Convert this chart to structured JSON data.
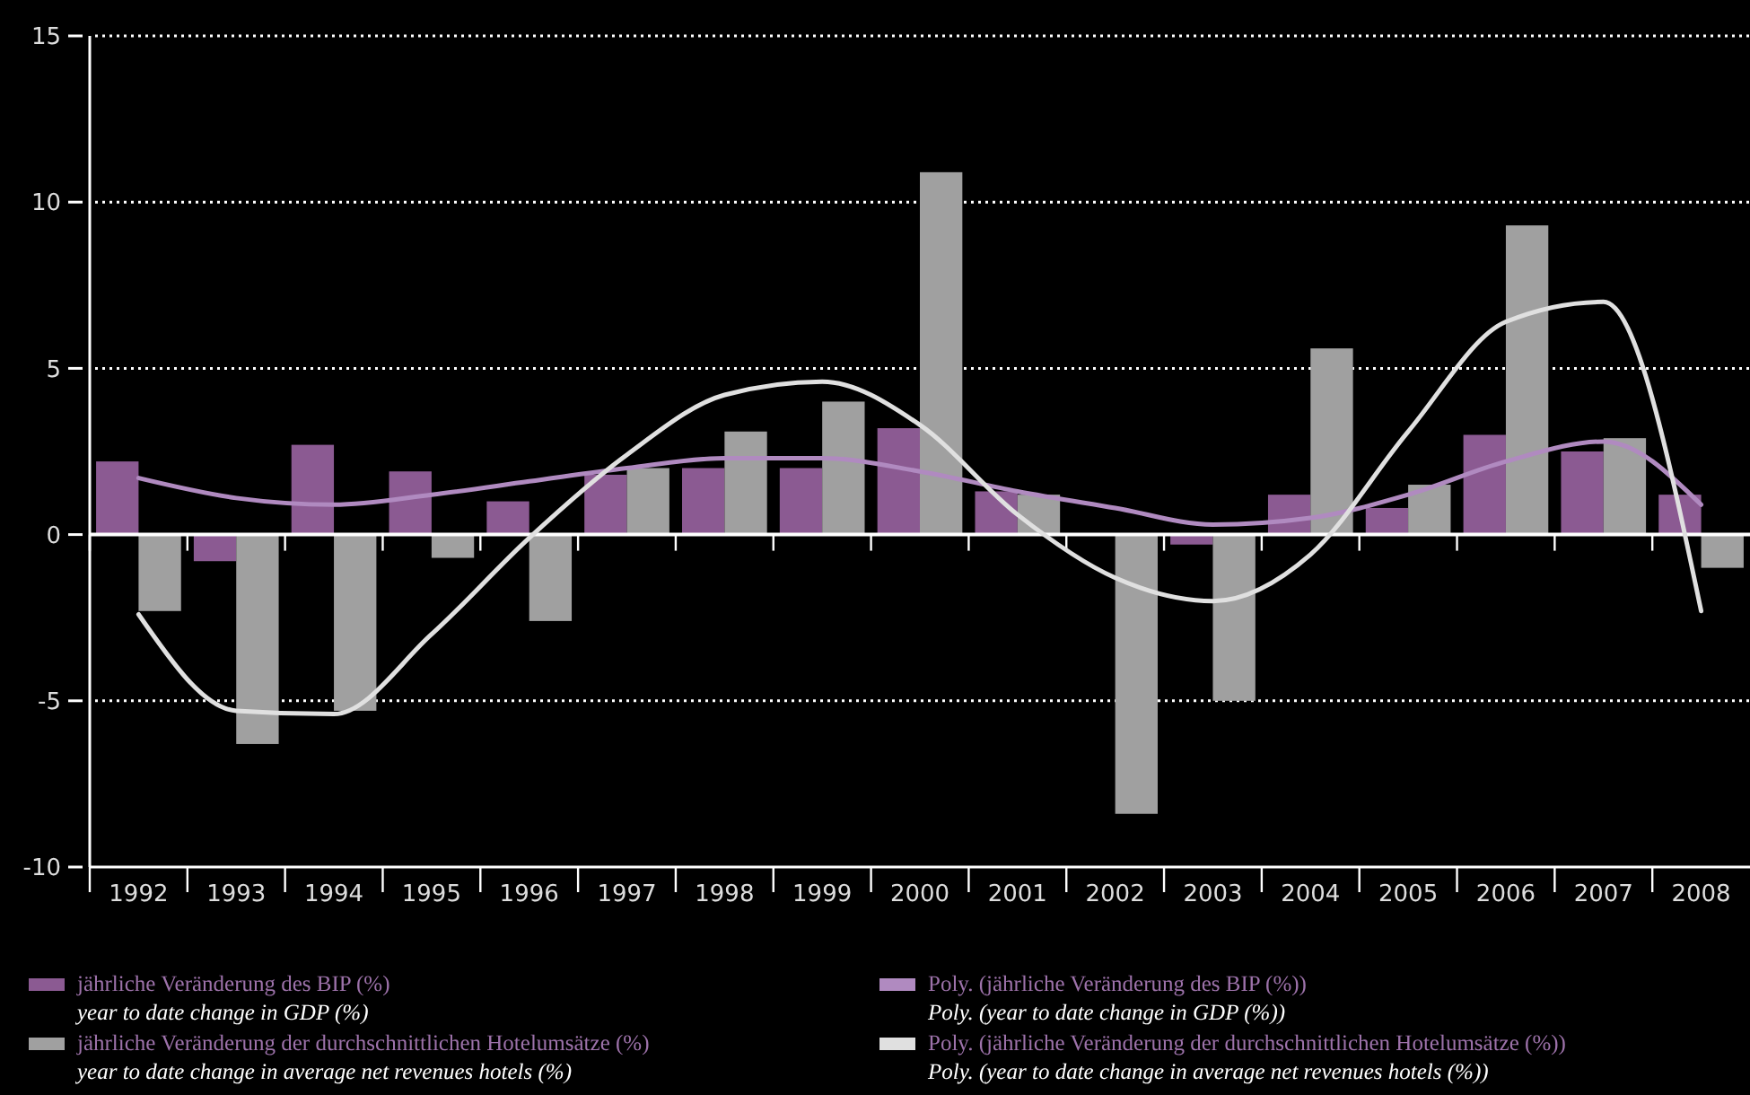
{
  "chart_data": {
    "type": "bar",
    "categories": [
      "1992",
      "1993",
      "1994",
      "1995",
      "1996",
      "1997",
      "1998",
      "1999",
      "2000",
      "2001",
      "2002",
      "2003",
      "2004",
      "2005",
      "2006",
      "2007",
      "2008"
    ],
    "series": [
      {
        "name": "jährliche Veränderung des BIP (%)\nyear to date change in GDP (%)",
        "color": "#8b5a92",
        "values": [
          2.2,
          -0.8,
          2.7,
          1.9,
          1.0,
          1.8,
          2.0,
          2.0,
          3.2,
          1.3,
          0,
          -0.3,
          1.2,
          0.8,
          3.0,
          2.5,
          1.2
        ]
      },
      {
        "name": "jährliche Veränderung der durchschnittlichen Hotelumsätze (%)\nyear to date change in average net revenues hotels (%)",
        "color": "#a0a0a0",
        "values": [
          -2.3,
          -6.3,
          -5.3,
          -0.7,
          -2.6,
          2.0,
          3.1,
          4.0,
          10.9,
          1.2,
          -8.4,
          -5.0,
          5.6,
          1.5,
          9.3,
          2.9,
          -1.0
        ]
      },
      {
        "name": "Poly. (jährliche Veränderung des BIP (%))\nPoly. (year to date change in GDP (%))",
        "type": "line",
        "color": "#b08ac0",
        "values": [
          1.7,
          1.1,
          0.9,
          1.2,
          1.6,
          2.0,
          2.3,
          2.3,
          1.9,
          1.3,
          0.8,
          0.3,
          0.5,
          1.2,
          2.2,
          2.8,
          0.9
        ]
      },
      {
        "name": "Poly. (jährliche Veränderung der durchschnittlichen Hotelumsätze (%))\nPoly. (year to date change in average net revenues hotels (%))",
        "type": "line",
        "color": "#e0e0e0",
        "values": [
          -2.4,
          -5.3,
          -5.4,
          -3.0,
          -0.1,
          2.4,
          4.2,
          4.6,
          3.3,
          0.6,
          -1.3,
          -2.0,
          -0.6,
          3.1,
          6.4,
          7.0,
          -2.3
        ]
      }
    ],
    "ylim": [
      -10,
      15
    ],
    "yticks": [
      -10,
      -5,
      0,
      5,
      10,
      15
    ],
    "grid": "y",
    "legend": "bottom"
  }
}
